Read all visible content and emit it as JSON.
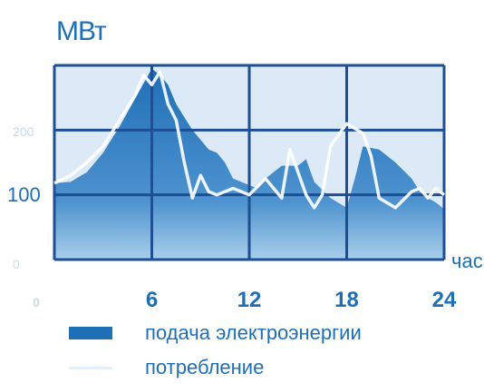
{
  "chart_data": {
    "type": "area",
    "y_unit": "МВт",
    "x_unit": "час",
    "x_ticks": [
      "0",
      "6",
      "12",
      "18",
      "24"
    ],
    "y_ticks": [
      "0",
      "100",
      "200"
    ],
    "xlim": [
      0,
      24
    ],
    "ylim": [
      0,
      300
    ],
    "grid": true,
    "legend_position": "bottom",
    "series": [
      {
        "name": "подача электроэнергии",
        "type": "area",
        "x": [
          0,
          1,
          2,
          3,
          3.5,
          4,
          5,
          6,
          6.5,
          7,
          7.5,
          8,
          8.5,
          9,
          9.5,
          10,
          10.5,
          11,
          12,
          12.5,
          13,
          14,
          15,
          15.5,
          16,
          17,
          18,
          18.5,
          19,
          20,
          21,
          22,
          22.5,
          23,
          23.5,
          24
        ],
        "values": [
          118,
          120,
          135,
          165,
          185,
          205,
          250,
          295,
          285,
          270,
          240,
          220,
          200,
          185,
          170,
          165,
          150,
          125,
          115,
          110,
          125,
          145,
          145,
          155,
          120,
          95,
          80,
          125,
          175,
          170,
          150,
          125,
          105,
          95,
          88,
          78
        ]
      },
      {
        "name": "потребление",
        "type": "line",
        "x": [
          0,
          1,
          2,
          3,
          4,
          5,
          5.5,
          6,
          6.5,
          7,
          7.5,
          8,
          8.5,
          9,
          9.5,
          10,
          11,
          12,
          13,
          14,
          14.5,
          15,
          15.5,
          16,
          16.5,
          17,
          18,
          19,
          19.5,
          20,
          21,
          22,
          22.5,
          23,
          23.5,
          24
        ],
        "values": [
          118,
          130,
          150,
          175,
          215,
          255,
          285,
          270,
          290,
          240,
          215,
          150,
          95,
          130,
          105,
          100,
          110,
          100,
          125,
          95,
          170,
          135,
          100,
          80,
          100,
          175,
          210,
          195,
          160,
          95,
          80,
          105,
          110,
          95,
          110,
          100
        ]
      }
    ]
  },
  "colors": {
    "grid": "#1e4e93",
    "area_dark": "#1f6fb6",
    "area_light": "#a9cfea",
    "line": "#ffffff",
    "text": "#1f6fb6",
    "faint_text": "#c7dcee"
  }
}
